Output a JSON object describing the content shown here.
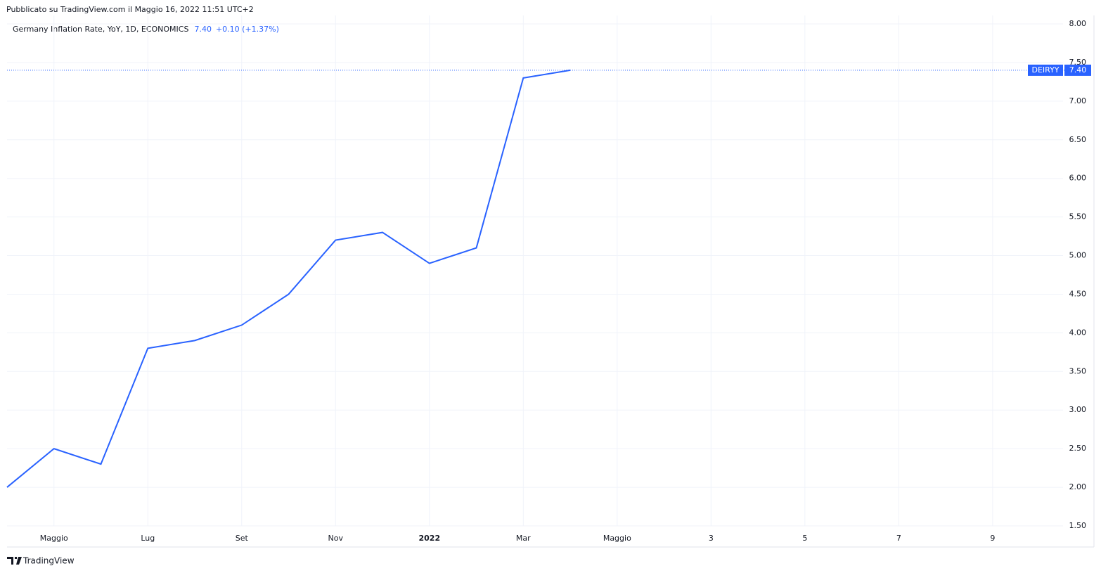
{
  "header": {
    "published": "Pubblicato su TradingView.com il Maggio 16, 2022 11:51 UTC+2",
    "brand": "TradingView"
  },
  "chart_data": {
    "type": "line",
    "title": "Germany Inflation Rate, YoY, 1D, ECONOMICS",
    "last_price": "7.40",
    "change": "+0.10 (+1.37%)",
    "categories": [
      null,
      "Maggio",
      null,
      "Lug",
      null,
      "Set",
      null,
      "Nov",
      null,
      "2022",
      null,
      "Mar",
      null,
      "Maggio",
      null,
      "3",
      null,
      "5",
      null,
      "7",
      null,
      "9",
      null
    ],
    "series": [
      {
        "name": "DEIRYY",
        "color": "#2962ff",
        "values": [
          2.0,
          2.5,
          2.3,
          3.8,
          3.9,
          4.1,
          4.5,
          5.2,
          5.3,
          4.9,
          5.1,
          7.3,
          7.4,
          null,
          null,
          null,
          null,
          null,
          null,
          null,
          null,
          null,
          null
        ]
      }
    ],
    "price_label": {
      "name": "DEIRYY",
      "value": 7.4,
      "label": "7.40"
    },
    "ylim": [
      1.5,
      8.0
    ],
    "yticks": [
      {
        "value": 1.5,
        "label": "1.50"
      },
      {
        "value": 2,
        "label": "2.00"
      },
      {
        "value": 2.5,
        "label": "2.50"
      },
      {
        "value": 3,
        "label": "3.00"
      },
      {
        "value": 3.5,
        "label": "3.50"
      },
      {
        "value": 4,
        "label": "4.00"
      },
      {
        "value": 4.5,
        "label": "4.50"
      },
      {
        "value": 5,
        "label": "5.00"
      },
      {
        "value": 5.5,
        "label": "5.50"
      },
      {
        "value": 6,
        "label": "6.00"
      },
      {
        "value": 6.5,
        "label": "6.50"
      },
      {
        "value": 7,
        "label": "7.00"
      },
      {
        "value": 7.5,
        "label": "7.50"
      },
      {
        "value": 8,
        "label": "8.00"
      }
    ],
    "grid": true
  }
}
